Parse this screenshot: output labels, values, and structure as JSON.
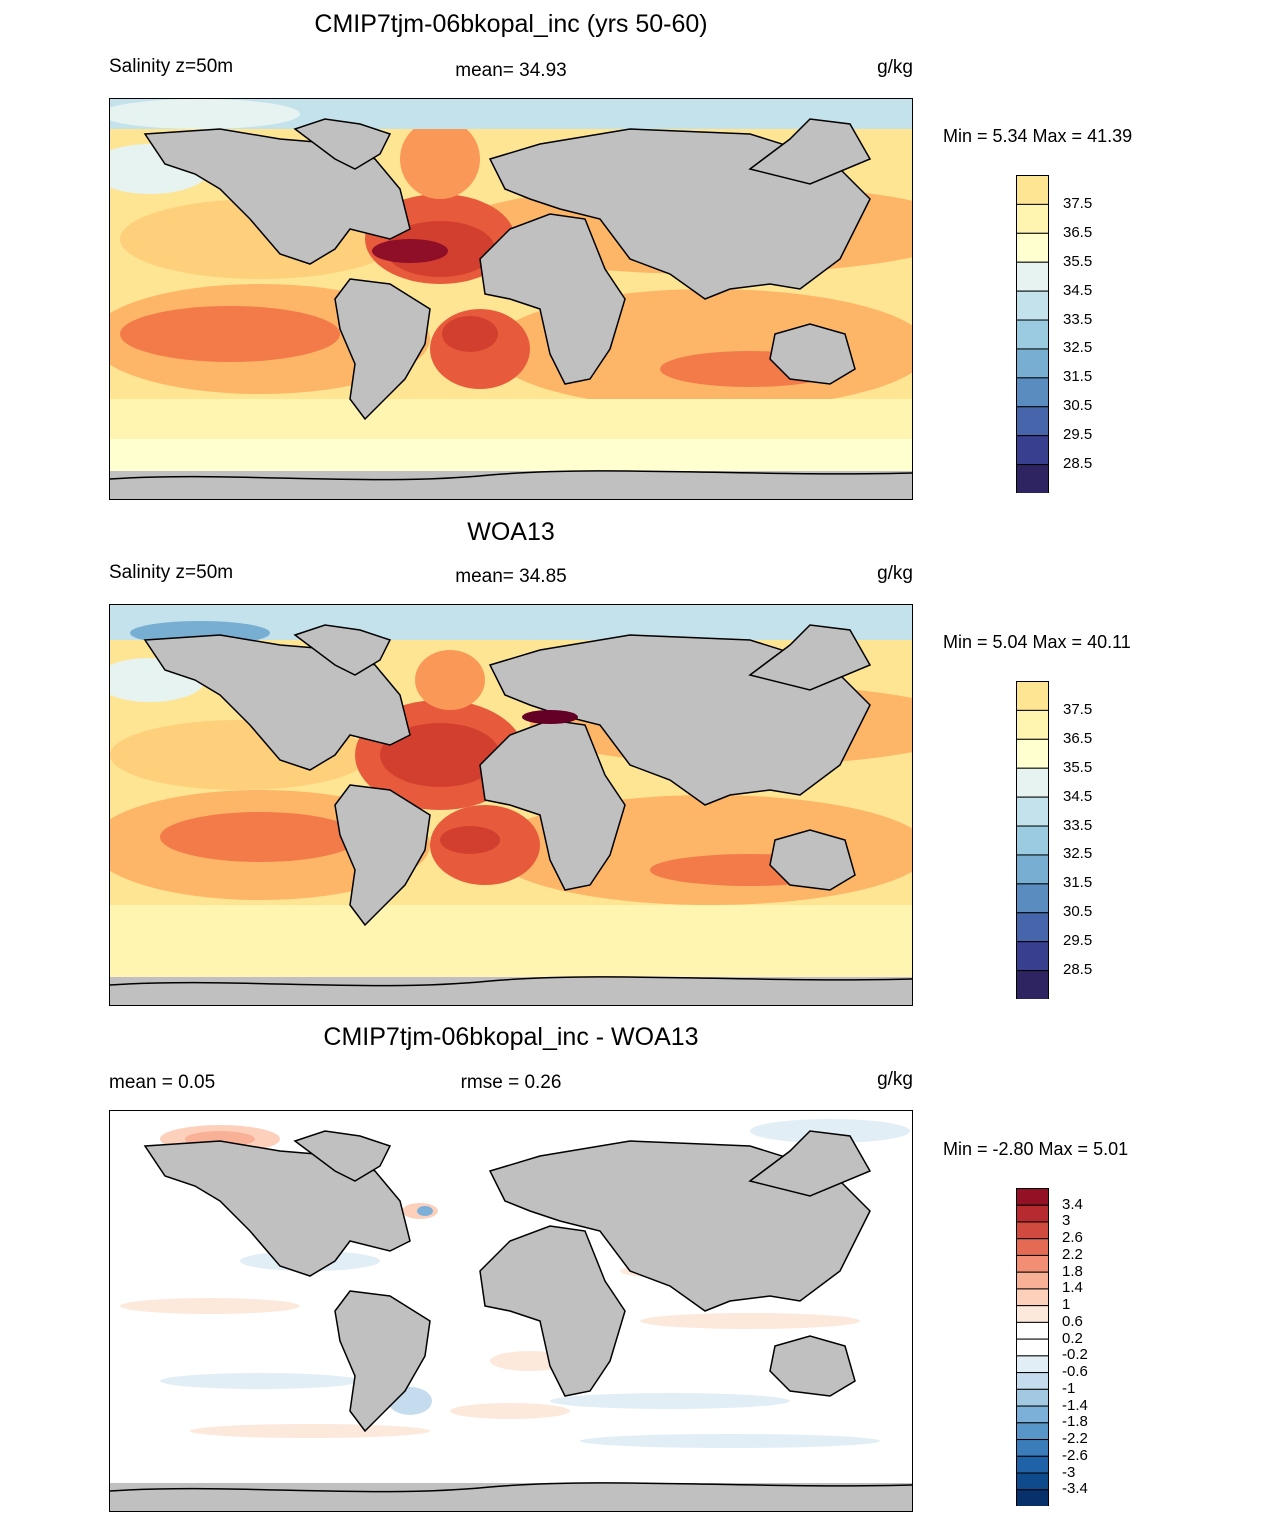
{
  "colors": {
    "land": "#c0c0c0",
    "salinity_scale": [
      "#2d2461",
      "#383f8f",
      "#4665aa",
      "#5a8cc0",
      "#77aed2",
      "#9bcbe1",
      "#c3e2ec",
      "#e6f3f1",
      "#ffffd0",
      "#fff4b0",
      "#fee593",
      "#fed07c",
      "#fdb567",
      "#fa9858",
      "#f37b4a",
      "#e75b3c",
      "#d33f2f",
      "#b72428",
      "#8f0f28",
      "#640025"
    ],
    "diff_scale": [
      "#08306b",
      "#0f4a8c",
      "#1f62a8",
      "#3b7cbb",
      "#5896ca",
      "#7cb0d8",
      "#a2c8e2",
      "#c5dcee",
      "#e2eef6",
      "#ffffff",
      "#ffffff",
      "#fde8dc",
      "#fcd0bb",
      "#f8b196",
      "#f28e74",
      "#e46a54",
      "#d14a40",
      "#b62a30",
      "#941024",
      "#67001f"
    ]
  },
  "panels": [
    {
      "title": "CMIP7tjm-06bkopal_inc (yrs 50-60)",
      "left_label": "Salinity z=50m",
      "center_label": "mean=  34.93",
      "units": "g/kg",
      "minmax": "Min =   5.34 Max =  41.39",
      "colorbar_labels": [
        "37.5",
        "36.5",
        "35.5",
        "34.5",
        "33.5",
        "32.5",
        "31.5",
        "30.5",
        "29.5",
        "28.5"
      ]
    },
    {
      "title": "WOA13",
      "left_label": "Salinity z=50m",
      "center_label": "mean=  34.85",
      "units": "g/kg",
      "minmax": "Min =   5.04 Max =  40.11",
      "colorbar_labels": [
        "37.5",
        "36.5",
        "35.5",
        "34.5",
        "33.5",
        "32.5",
        "31.5",
        "30.5",
        "29.5",
        "28.5"
      ]
    },
    {
      "title": "CMIP7tjm-06bkopal_inc - WOA13",
      "left_label": "mean =   0.05",
      "center_label": "rmse =   0.26",
      "units": "g/kg",
      "minmax": "Min =  -2.80 Max =   5.01",
      "colorbar_labels": [
        "3.4",
        "3",
        "2.6",
        "2.2",
        "1.8",
        "1.4",
        "1",
        "0.6",
        "0.2",
        "-0.2",
        "-0.6",
        "-1",
        "-1.4",
        "-1.8",
        "-2.2",
        "-2.6",
        "-3",
        "-3.4"
      ]
    }
  ]
}
